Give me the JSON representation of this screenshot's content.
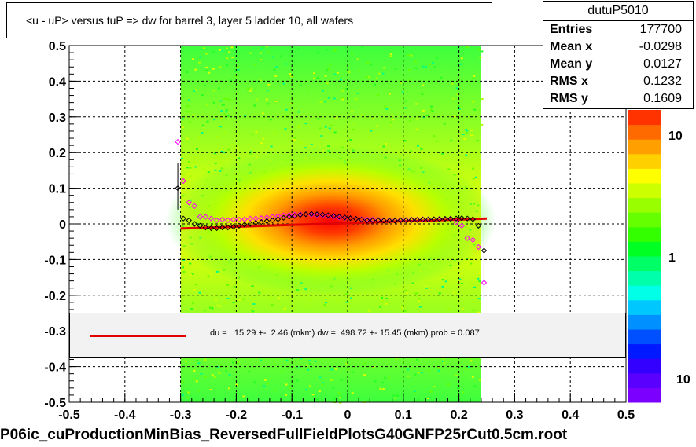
{
  "title": "<u - uP>       versus  tuP =>  dw for barrel 3, layer 5 ladder 10, all wafers",
  "stats": {
    "name": "dutuP5010",
    "rows": [
      {
        "label": "Entries",
        "value": "177700"
      },
      {
        "label": "Mean x",
        "value": "-0.0298"
      },
      {
        "label": "Mean y",
        "value": "0.0127"
      },
      {
        "label": "RMS x",
        "value": "0.1232"
      },
      {
        "label": "RMS y",
        "value": "0.1609"
      }
    ]
  },
  "legend": {
    "text": "du =   15.29 +-  2.46 (mkm) dw =  498.72 +- 15.45 (mkm) prob = 0.087",
    "line_color": "#e00000"
  },
  "footer": "P06ic_cuProductionMinBias_ReversedFullFieldPlotsG40GNFP25rCut0.5cm.root",
  "colorbar": {
    "labels": [
      "10",
      "1",
      "10"
    ],
    "colors": [
      "#7b00ff",
      "#5a00ff",
      "#3300ff",
      "#0019ff",
      "#0050ff",
      "#0090ff",
      "#00c8ff",
      "#00ffe6",
      "#00ffaa",
      "#00ff66",
      "#00ff22",
      "#33ff00",
      "#66ff00",
      "#99ff00",
      "#ccff00",
      "#ffff00",
      "#ffd000",
      "#ffa000",
      "#ff6a00",
      "#ff3300"
    ]
  },
  "chart_data": {
    "type": "heatmap",
    "x_ticks": [
      "-0.5",
      "-0.4",
      "-0.3",
      "-0.2",
      "-0.1",
      "0",
      "0.1",
      "0.2",
      "0.3",
      "0.4",
      "0.5"
    ],
    "y_ticks": [
      "0.5",
      "0.4",
      "0.3",
      "0.2",
      "0.1",
      "0",
      "-0.1",
      "-0.2",
      "-0.3",
      "-0.4",
      "-0.5"
    ],
    "xlim": [
      -0.5,
      0.5
    ],
    "ylim": [
      -0.5,
      0.5
    ],
    "grid": true,
    "occupied_x_range": [
      -0.3,
      0.24
    ],
    "profile_black": {
      "x": [
        -0.305,
        -0.295,
        -0.285,
        -0.275,
        -0.265,
        -0.255,
        -0.245,
        -0.235,
        -0.225,
        -0.215,
        -0.205,
        -0.195,
        -0.185,
        -0.175,
        -0.165,
        -0.155,
        -0.145,
        -0.135,
        -0.125,
        -0.115,
        -0.105,
        -0.095,
        -0.085,
        -0.075,
        -0.065,
        -0.055,
        -0.045,
        -0.035,
        -0.025,
        -0.015,
        -0.005,
        0.005,
        0.015,
        0.025,
        0.035,
        0.045,
        0.055,
        0.065,
        0.075,
        0.085,
        0.095,
        0.105,
        0.115,
        0.125,
        0.135,
        0.145,
        0.155,
        0.165,
        0.175,
        0.185,
        0.195,
        0.205,
        0.215,
        0.225,
        0.235,
        0.245
      ],
      "y": [
        0.1,
        0.015,
        0.01,
        0.0,
        -0.005,
        -0.01,
        -0.012,
        -0.012,
        -0.01,
        -0.01,
        -0.008,
        -0.005,
        -0.002,
        0.0,
        0.003,
        0.005,
        0.008,
        0.01,
        0.013,
        0.017,
        0.02,
        0.022,
        0.025,
        0.027,
        0.028,
        0.027,
        0.026,
        0.024,
        0.022,
        0.02,
        0.018,
        0.016,
        0.014,
        0.012,
        0.01,
        0.01,
        0.01,
        0.009,
        0.009,
        0.009,
        0.01,
        0.01,
        0.011,
        0.011,
        0.012,
        0.012,
        0.013,
        0.013,
        0.014,
        0.014,
        0.015,
        0.016,
        0.015,
        0.013,
        -0.005,
        -0.075
      ]
    },
    "profile_magenta": {
      "x": [
        -0.305,
        -0.295,
        -0.285,
        -0.275,
        -0.265,
        -0.255,
        -0.245,
        -0.235,
        -0.225,
        -0.215,
        -0.205,
        -0.195,
        -0.185,
        -0.175,
        -0.165,
        -0.155,
        -0.145,
        -0.135,
        -0.125,
        -0.115,
        -0.105,
        -0.095,
        -0.085,
        -0.075,
        -0.065,
        -0.055,
        -0.045,
        -0.035,
        -0.025,
        -0.015,
        -0.005,
        0.005,
        0.015,
        0.025,
        0.035,
        0.045,
        0.055,
        0.065,
        0.075,
        0.085,
        0.095,
        0.105,
        0.115,
        0.125,
        0.135,
        0.145,
        0.155,
        0.165,
        0.175,
        0.185,
        0.195,
        0.205,
        0.215,
        0.225,
        0.235,
        0.245
      ],
      "y": [
        0.23,
        0.12,
        0.06,
        0.05,
        0.02,
        0.02,
        0.015,
        0.01,
        0.012,
        0.01,
        0.012,
        0.012,
        0.013,
        0.015,
        0.015,
        0.016,
        0.018,
        0.02,
        0.022,
        0.024,
        0.025,
        0.026,
        0.027,
        0.027,
        0.026,
        0.025,
        0.024,
        0.022,
        0.02,
        0.018,
        0.017,
        0.016,
        0.014,
        0.013,
        0.012,
        0.012,
        0.011,
        0.01,
        0.01,
        0.01,
        0.011,
        0.011,
        0.012,
        0.012,
        0.013,
        0.013,
        0.013,
        0.014,
        0.014,
        0.015,
        0.005,
        -0.005,
        -0.04,
        -0.045,
        -0.065,
        -0.165
      ]
    },
    "fit_line": {
      "x": [
        -0.3,
        0.25
      ],
      "y": [
        -0.013,
        0.015
      ]
    }
  }
}
